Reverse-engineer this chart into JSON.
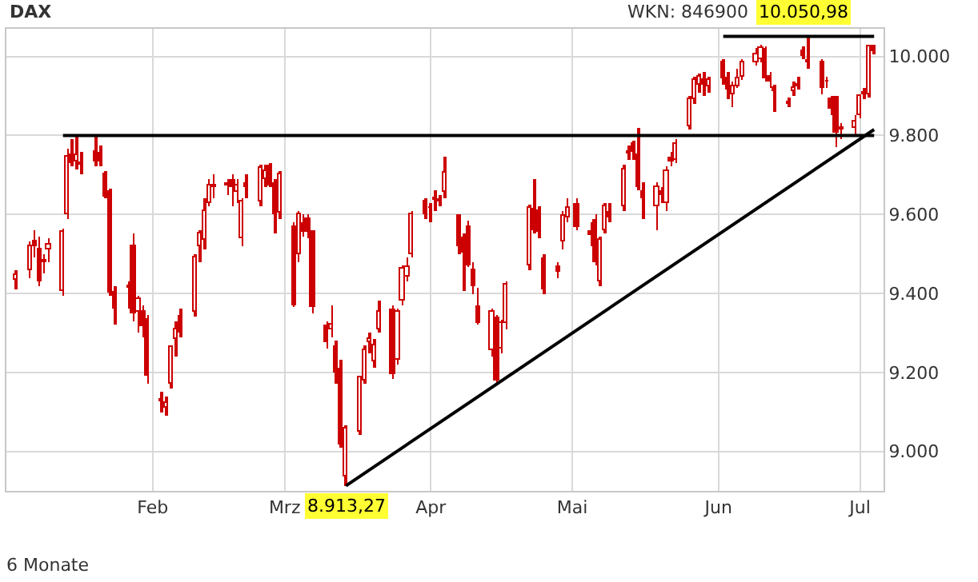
{
  "chart_data": {
    "type": "candlestick",
    "title": "DAX",
    "annotations": [
      "WKN: 846900",
      "6 Monate",
      "10.050,98",
      "8.913,27"
    ],
    "series": [
      {
        "color": "#cc0000",
        "x": [
          "--01-03",
          "--01-06",
          "--01-07",
          "--01-08",
          "--01-09",
          "--01-10",
          "--01-13",
          "--01-14",
          "--01-15",
          "--01-16",
          "--01-17",
          "--01-20",
          "--01-21",
          "--01-22",
          "--01-23",
          "--01-24",
          "--01-27",
          "--01-28",
          "--01-29",
          "--01-30",
          "--01-31",
          "--02-03",
          "--02-04",
          "--02-05",
          "--02-06",
          "--02-07",
          "--02-10",
          "--02-11",
          "--02-12",
          "--02-13",
          "--02-14",
          "--02-17",
          "--02-18",
          "--02-19",
          "--02-20",
          "--02-21",
          "--02-24",
          "--02-25",
          "--02-26",
          "--02-27",
          "--02-28",
          "--03-03",
          "--03-04",
          "--03-05",
          "--03-06",
          "--03-07",
          "--03-10",
          "--03-11",
          "--03-12",
          "--03-13",
          "--03-14",
          "--03-17",
          "--03-18",
          "--03-19",
          "--03-20",
          "--03-21",
          "--03-24",
          "--03-25",
          "--03-26",
          "--03-27",
          "--03-28",
          "--03-31",
          "--04-01",
          "--04-02",
          "--04-03",
          "--04-04",
          "--04-07",
          "--04-08",
          "--04-09",
          "--04-10",
          "--04-11",
          "--04-14",
          "--04-15",
          "--04-16",
          "--04-17",
          "--04-22",
          "--04-23",
          "--04-24",
          "--04-25",
          "--04-28",
          "--04-29",
          "--04-30",
          "--05-02",
          "--05-05",
          "--05-06",
          "--05-07",
          "--05-08",
          "--05-09",
          "--05-12",
          "--05-13",
          "--05-14",
          "--05-15",
          "--05-16",
          "--05-19",
          "--05-20",
          "--05-21",
          "--05-22",
          "--05-23",
          "--05-26",
          "--05-27",
          "--05-28",
          "--05-29",
          "--05-30",
          "--06-02",
          "--06-03",
          "--06-04",
          "--06-05",
          "--06-06",
          "--06-09",
          "--06-10",
          "--06-11",
          "--06-12",
          "--06-13",
          "--06-16",
          "--06-17",
          "--06-18",
          "--06-19",
          "--06-20",
          "--06-23",
          "--06-24",
          "--06-25",
          "--06-26",
          "--06-27",
          "--06-30",
          "--07-01",
          "--07-02",
          "--07-03",
          "--07-04"
        ],
        "ohlc": [
          [
            9435,
            9460,
            9410,
            9445
          ],
          [
            9460,
            9530,
            9440,
            9520
          ],
          [
            9530,
            9560,
            9490,
            9520
          ],
          [
            9510,
            9545,
            9420,
            9430
          ],
          [
            9480,
            9500,
            9450,
            9485
          ],
          [
            9510,
            9540,
            9480,
            9525
          ],
          [
            9405,
            9565,
            9395,
            9555
          ],
          [
            9602,
            9765,
            9590,
            9745
          ],
          [
            9750,
            9790,
            9720,
            9730
          ],
          [
            9732,
            9800,
            9715,
            9750
          ],
          [
            9728,
            9760,
            9700,
            9725
          ],
          [
            9760,
            9800,
            9720,
            9733
          ],
          [
            9755,
            9775,
            9720,
            9735
          ],
          [
            9703,
            9710,
            9640,
            9646
          ],
          [
            9656,
            9665,
            9395,
            9404
          ],
          [
            9404,
            9420,
            9320,
            9360
          ],
          [
            9415,
            9430,
            9360,
            9418
          ],
          [
            9520,
            9550,
            9330,
            9350
          ],
          [
            9355,
            9395,
            9300,
            9384
          ],
          [
            9352,
            9370,
            9290,
            9318
          ],
          [
            9332,
            9345,
            9170,
            9193
          ],
          [
            9132,
            9150,
            9100,
            9128
          ],
          [
            9112,
            9140,
            9090,
            9122
          ],
          [
            9173,
            9270,
            9160,
            9265
          ],
          [
            9284,
            9330,
            9240,
            9310
          ],
          [
            9343,
            9360,
            9290,
            9300
          ],
          [
            9352,
            9500,
            9340,
            9490
          ],
          [
            9520,
            9560,
            9480,
            9551
          ],
          [
            9536,
            9640,
            9510,
            9608
          ],
          [
            9629,
            9690,
            9620,
            9673
          ],
          [
            9670,
            9700,
            9640,
            9675
          ],
          [
            9672,
            9690,
            9650,
            9678
          ],
          [
            9685,
            9700,
            9620,
            9669
          ],
          [
            9656,
            9690,
            9630,
            9672
          ],
          [
            9540,
            9640,
            9520,
            9633
          ],
          [
            9676,
            9700,
            9640,
            9668
          ],
          [
            9633,
            9725,
            9620,
            9717
          ],
          [
            9690,
            9725,
            9670,
            9710
          ],
          [
            9720,
            9730,
            9670,
            9674
          ],
          [
            9676,
            9690,
            9550,
            9601
          ],
          [
            9605,
            9710,
            9590,
            9703
          ],
          [
            9567,
            9580,
            9365,
            9370
          ],
          [
            9500,
            9610,
            9480,
            9602
          ],
          [
            9578,
            9600,
            9545,
            9554
          ],
          [
            9587,
            9600,
            9540,
            9554
          ],
          [
            9554,
            9560,
            9350,
            9364
          ],
          [
            9316,
            9330,
            9260,
            9275
          ],
          [
            9309,
            9370,
            9290,
            9320
          ],
          [
            9266,
            9280,
            9170,
            9198
          ],
          [
            9207,
            9230,
            9010,
            9017
          ],
          [
            8935,
            9065,
            8913,
            9058
          ],
          [
            9051,
            9190,
            9040,
            9187
          ],
          [
            9180,
            9270,
            9170,
            9255
          ],
          [
            9275,
            9300,
            9250,
            9286
          ],
          [
            9228,
            9285,
            9210,
            9268
          ],
          [
            9309,
            9380,
            9300,
            9354
          ],
          [
            9357,
            9370,
            9185,
            9194
          ],
          [
            9234,
            9360,
            9220,
            9353
          ],
          [
            9380,
            9470,
            9370,
            9462
          ],
          [
            9442,
            9490,
            9430,
            9465
          ],
          [
            9500,
            9610,
            9490,
            9601
          ],
          [
            9633,
            9640,
            9590,
            9601
          ],
          [
            9615,
            9630,
            9580,
            9618
          ],
          [
            9636,
            9660,
            9610,
            9640
          ],
          [
            9633,
            9650,
            9620,
            9638
          ],
          [
            9656,
            9745,
            9640,
            9706
          ],
          [
            9595,
            9600,
            9500,
            9520
          ],
          [
            9540,
            9550,
            9405,
            9502
          ],
          [
            9570,
            9585,
            9465,
            9470
          ],
          [
            9460,
            9480,
            9400,
            9420
          ],
          [
            9364,
            9415,
            9320,
            9325
          ],
          [
            9257,
            9360,
            9240,
            9353
          ],
          [
            9336,
            9345,
            9170,
            9180
          ],
          [
            9262,
            9335,
            9250,
            9325
          ],
          [
            9325,
            9430,
            9310,
            9421
          ],
          [
            9472,
            9625,
            9460,
            9615
          ],
          [
            9612,
            9690,
            9550,
            9561
          ],
          [
            9608,
            9620,
            9540,
            9557
          ],
          [
            9486,
            9500,
            9400,
            9411
          ],
          [
            9466,
            9480,
            9440,
            9456
          ],
          [
            9533,
            9610,
            9510,
            9595
          ],
          [
            9592,
            9640,
            9580,
            9615
          ],
          [
            9625,
            9640,
            9560,
            9567
          ],
          [
            9554,
            9580,
            9520,
            9547
          ],
          [
            9584,
            9600,
            9470,
            9479
          ],
          [
            9431,
            9545,
            9420,
            9536
          ],
          [
            9561,
            9630,
            9550,
            9622
          ],
          [
            9604,
            9630,
            9580,
            9592
          ],
          [
            9622,
            9725,
            9610,
            9714
          ],
          [
            9755,
            9775,
            9740,
            9760
          ],
          [
            9778,
            9785,
            9740,
            9758
          ],
          [
            9751,
            9820,
            9660,
            9670
          ],
          [
            9659,
            9680,
            9590,
            9642
          ],
          [
            9622,
            9680,
            9560,
            9670
          ],
          [
            9656,
            9670,
            9630,
            9649
          ],
          [
            9629,
            9720,
            9610,
            9710
          ],
          [
            9744,
            9760,
            9720,
            9733
          ],
          [
            9737,
            9790,
            9730,
            9778
          ],
          [
            9825,
            9900,
            9815,
            9890
          ],
          [
            9890,
            9948,
            9880,
            9942
          ],
          [
            9928,
            9955,
            9910,
            9949
          ],
          [
            9942,
            9960,
            9900,
            9928
          ],
          [
            9926,
            9950,
            9910,
            9942
          ],
          [
            9983,
            9995,
            9930,
            9945
          ],
          [
            9945,
            9960,
            9890,
            9915
          ],
          [
            9904,
            9935,
            9870,
            9926
          ],
          [
            9926,
            9970,
            9920,
            9945
          ],
          [
            9949,
            9995,
            9940,
            9983
          ],
          [
            9986,
            10020,
            9975,
            10004
          ],
          [
            9994,
            10030,
            9985,
            10022
          ],
          [
            10018,
            10025,
            9935,
            9945
          ],
          [
            9949,
            9960,
            9920,
            9935
          ],
          [
            9921,
            9930,
            9860,
            9912
          ],
          [
            9885,
            9895,
            9870,
            9880
          ],
          [
            9912,
            9935,
            9900,
            9921
          ],
          [
            9926,
            9950,
            9915,
            9928
          ],
          [
            10014,
            10025,
            9995,
            10000
          ],
          [
            9990,
            10051,
            9970,
            9983
          ],
          [
            9986,
            9995,
            9905,
            9921
          ],
          [
            9935,
            9950,
            9920,
            9935
          ],
          [
            9890,
            9900,
            9850,
            9867
          ],
          [
            9894,
            9900,
            9770,
            9807
          ],
          [
            9815,
            9830,
            9790,
            9818
          ],
          [
            9818,
            9850,
            9800,
            9835
          ],
          [
            9853,
            9905,
            9845,
            9898
          ],
          [
            9905,
            9920,
            9890,
            9908
          ],
          [
            9904,
            10030,
            9895,
            10025
          ],
          [
            10025,
            10030,
            10005,
            10014
          ]
        ]
      },
      {
        "type": "line",
        "color": "#000000",
        "x": [
          "--01-13",
          "--07-04"
        ],
        "values": [
          9800,
          9800
        ]
      },
      {
        "type": "line",
        "color": "#000000",
        "x": [
          "--03-14",
          "--07-04"
        ],
        "values": [
          8913,
          9815
        ]
      },
      {
        "type": "line",
        "color": "#000000",
        "x": [
          "--06-02",
          "--07-04"
        ],
        "values": [
          10051,
          10051
        ]
      }
    ],
    "xlim": [
      "--01-01",
      "--07-06"
    ],
    "xticks": [
      {
        "value": "--02-01",
        "label": "Feb"
      },
      {
        "value": "--03-01",
        "label": "Mrz"
      },
      {
        "value": "--04-01",
        "label": "Apr"
      },
      {
        "value": "--05-01",
        "label": "Mai"
      },
      {
        "value": "--06-01",
        "label": "Jun"
      },
      {
        "value": "--07-01",
        "label": "Jul"
      }
    ],
    "ylim": [
      8900,
      10070
    ],
    "yticks": [
      {
        "value": 9000,
        "label": "9.000"
      },
      {
        "value": 9200,
        "label": "9.200"
      },
      {
        "value": 9400,
        "label": "9.400"
      },
      {
        "value": 9600,
        "label": "9.600"
      },
      {
        "value": 9800,
        "label": "9.800"
      },
      {
        "value": 10000,
        "label": "10.000"
      }
    ],
    "grid": true,
    "legend": false,
    "line_style": "solid",
    "marker": "none"
  }
}
